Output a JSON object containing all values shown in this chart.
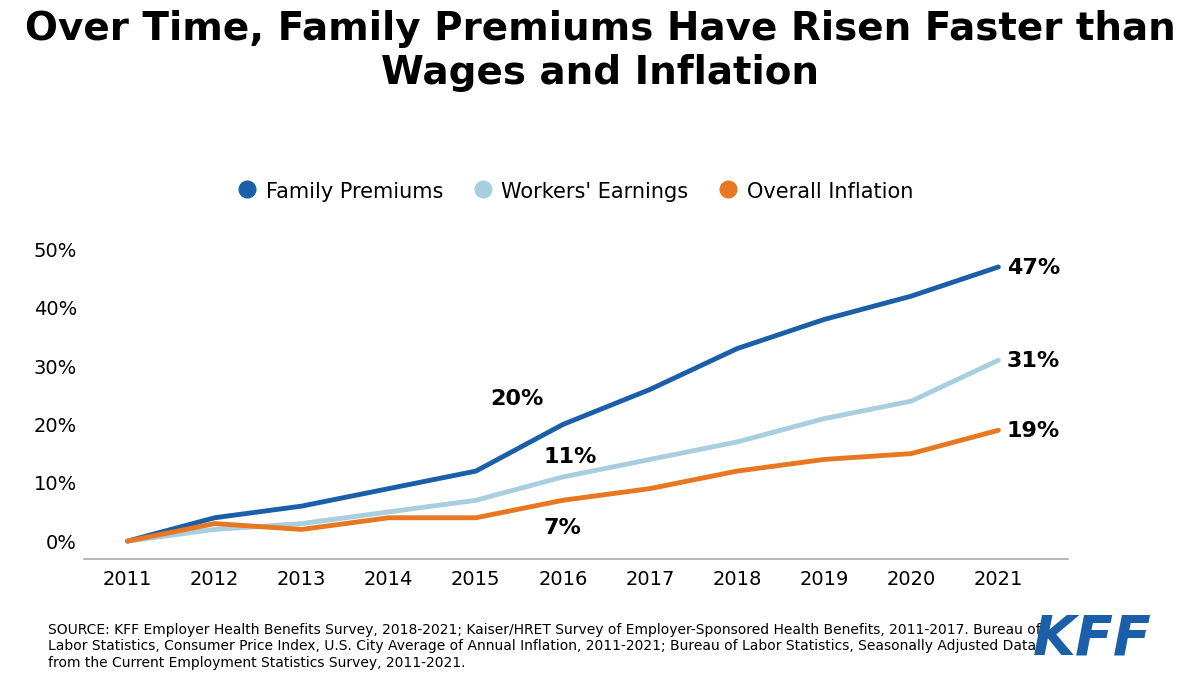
{
  "title": "Over Time, Family Premiums Have Risen Faster than\nWages and Inflation",
  "years": [
    2011,
    2012,
    2013,
    2014,
    2015,
    2016,
    2017,
    2018,
    2019,
    2020,
    2021
  ],
  "family_premiums": [
    0,
    4,
    6,
    9,
    12,
    20,
    26,
    33,
    38,
    42,
    47
  ],
  "workers_earnings": [
    0,
    2,
    3,
    5,
    7,
    11,
    14,
    17,
    21,
    24,
    31
  ],
  "overall_inflation": [
    0,
    3,
    2,
    4,
    4,
    7,
    9,
    12,
    14,
    15,
    19
  ],
  "series_colors": {
    "family_premiums": "#1a5fa8",
    "workers_earnings": "#a8cfe0",
    "overall_inflation": "#e87722"
  },
  "series_labels": {
    "family_premiums": "Family Premiums",
    "workers_earnings": "Workers' Earnings",
    "overall_inflation": "Overall Inflation"
  },
  "ann2016_fp": "20%",
  "ann2016_we": "11%",
  "ann2016_oi": "7%",
  "ann2021_fp": "47%",
  "ann2021_we": "31%",
  "ann2021_oi": "19%",
  "yticks": [
    0,
    10,
    20,
    30,
    40,
    50
  ],
  "ytick_labels": [
    "0%",
    "10%",
    "20%",
    "30%",
    "40%",
    "50%"
  ],
  "ylim": [
    -3,
    57
  ],
  "xlim": [
    2010.5,
    2021.8
  ],
  "source_text": "SOURCE: KFF Employer Health Benefits Survey, 2018-2021; Kaiser/HRET Survey of Employer-Sponsored Health Benefits, 2011-2017. Bureau of\nLabor Statistics, Consumer Price Index, U.S. City Average of Annual Inflation, 2011-2021; Bureau of Labor Statistics, Seasonally Adjusted Data\nfrom the Current Employment Statistics Survey, 2011-2021.",
  "background_color": "#ffffff",
  "line_width": 3.5,
  "title_fontsize": 28,
  "legend_fontsize": 15,
  "annotation_fontsize": 16,
  "tick_fontsize": 14,
  "source_fontsize": 10,
  "kff_color": "#1a5fa8"
}
